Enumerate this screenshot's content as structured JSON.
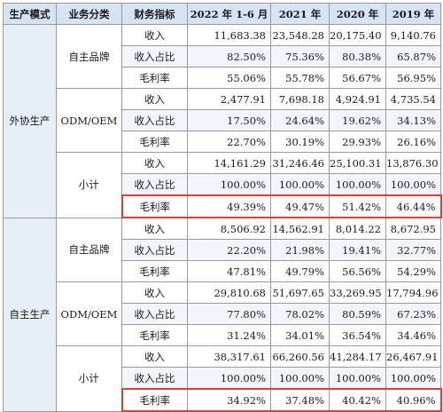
{
  "headers": [
    "生产模式",
    "业务分类",
    "财务指标",
    "2022 年 1-6 月",
    "2021 年",
    "2020 年",
    "2019 年"
  ],
  "groups": [
    {
      "mode": "外协生产",
      "categories": [
        {
          "name": "自主品牌",
          "rows": [
            {
              "metric": "收入",
              "values": [
                "11,683.38",
                "23,548.28",
                "20,175.40",
                "9,140.76"
              ]
            },
            {
              "metric": "收入占比",
              "values": [
                "82.50%",
                "75.36%",
                "80.38%",
                "65.87%"
              ]
            },
            {
              "metric": "毛利率",
              "values": [
                "55.06%",
                "55.78%",
                "56.67%",
                "56.95%"
              ]
            }
          ]
        },
        {
          "name": "ODM/OEM",
          "rows": [
            {
              "metric": "收入",
              "values": [
                "2,477.91",
                "7,698.18",
                "4,924.91",
                "4,735.54"
              ]
            },
            {
              "metric": "收入占比",
              "values": [
                "17.50%",
                "24.64%",
                "19.62%",
                "34.13%"
              ]
            },
            {
              "metric": "毛利率",
              "values": [
                "22.70%",
                "30.19%",
                "29.93%",
                "26.16%"
              ]
            }
          ]
        },
        {
          "name": "小计",
          "rows": [
            {
              "metric": "收入",
              "values": [
                "14,161.29",
                "31,246.46",
                "25,100.31",
                "13,876.30"
              ]
            },
            {
              "metric": "收入占比",
              "values": [
                "100.00%",
                "100.00%",
                "100.00%",
                "100.00%"
              ]
            },
            {
              "metric": "毛利率",
              "values": [
                "49.39%",
                "49.47%",
                "51.42%",
                "46.44%"
              ]
            }
          ]
        }
      ]
    },
    {
      "mode": "自主生产",
      "categories": [
        {
          "name": "自主品牌",
          "rows": [
            {
              "metric": "收入",
              "values": [
                "8,506.92",
                "14,562.91",
                "8,014.22",
                "8,672.95"
              ]
            },
            {
              "metric": "收入占比",
              "values": [
                "22.20%",
                "21.98%",
                "19.41%",
                "32.77%"
              ]
            },
            {
              "metric": "毛利率",
              "values": [
                "47.81%",
                "49.79%",
                "56.56%",
                "54.29%"
              ]
            }
          ]
        },
        {
          "name": "ODM/OEM",
          "rows": [
            {
              "metric": "收入",
              "values": [
                "29,810.68",
                "51,697.65",
                "33,269.95",
                "17,794.96"
              ]
            },
            {
              "metric": "收入占比",
              "values": [
                "77.80%",
                "78.02%",
                "80.59%",
                "67.23%"
              ]
            },
            {
              "metric": "毛利率",
              "values": [
                "31.24%",
                "34.01%",
                "36.54%",
                "34.46%"
              ]
            }
          ]
        },
        {
          "name": "小计",
          "rows": [
            {
              "metric": "收入",
              "values": [
                "38,317.61",
                "66,260.56",
                "41,284.17",
                "26,467.91"
              ]
            },
            {
              "metric": "收入占比",
              "values": [
                "100.00%",
                "100.00%",
                "100.00%",
                "100.00%"
              ]
            },
            {
              "metric": "毛利率",
              "values": [
                "34.92%",
                "37.48%",
                "40.42%",
                "40.96%"
              ]
            }
          ]
        }
      ]
    }
  ],
  "highlight": {
    "border_color": "#e03b3b",
    "header_bg": "#d6e3f2"
  }
}
